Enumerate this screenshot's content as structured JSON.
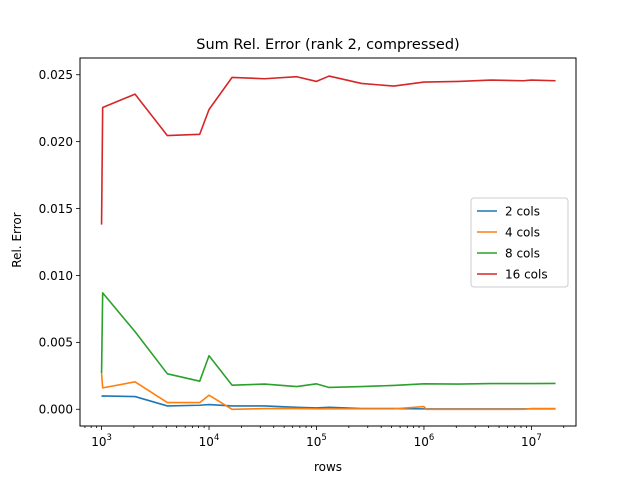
{
  "chart_data": {
    "type": "line",
    "title": "Sum Rel. Error (rank 2, compressed)",
    "xlabel": "rows",
    "ylabel": "Rel. Error",
    "xscale": "log",
    "xlim": [
      630,
      26000000
    ],
    "ylim": [
      -0.00125,
      0.02625
    ],
    "yticks": [
      0.0,
      0.005,
      0.01,
      0.015,
      0.02,
      0.025
    ],
    "ytick_labels": [
      "0.000",
      "0.005",
      "0.010",
      "0.015",
      "0.020",
      "0.025"
    ],
    "xticks": [
      1000,
      10000,
      100000,
      1000000,
      10000000
    ],
    "xtick_labels": [
      {
        "base": "10",
        "exp": "3"
      },
      {
        "base": "10",
        "exp": "4"
      },
      {
        "base": "10",
        "exp": "5"
      },
      {
        "base": "10",
        "exp": "6"
      },
      {
        "base": "10",
        "exp": "7"
      }
    ],
    "grid": false,
    "legend_position": "center-right",
    "series": [
      {
        "name": "2 cols",
        "color": "#1f77b4",
        "x": [
          1000,
          1024,
          2048,
          4096,
          8192,
          10000,
          16384,
          32768,
          65536,
          100000,
          131072,
          262144,
          524288,
          1000000,
          2097152,
          4194304,
          8388608,
          10000000,
          16777216
        ],
        "y": [
          0.00095,
          0.001,
          0.00095,
          0.00025,
          0.0003,
          0.00035,
          0.00025,
          0.00025,
          0.00015,
          0.0001,
          0.00015,
          5e-05,
          5e-05,
          3e-05,
          3e-05,
          3e-05,
          3e-05,
          3e-05,
          3e-05
        ]
      },
      {
        "name": "4 cols",
        "color": "#ff7f0e",
        "x": [
          1000,
          1024,
          2048,
          4096,
          8192,
          10000,
          16384,
          32768,
          65536,
          100000,
          131072,
          262144,
          524288,
          1000000,
          1048576,
          2097152,
          4194304,
          8388608,
          10000000,
          16777216
        ],
        "y": [
          0.0027,
          0.0016,
          0.00205,
          0.0005,
          0.0005,
          0.00105,
          0.0,
          5e-05,
          5e-05,
          3e-05,
          3e-05,
          3e-05,
          3e-05,
          0.0002,
          0.0,
          0.0,
          0.0,
          0.0,
          5e-05,
          5e-05
        ]
      },
      {
        "name": "8 cols",
        "color": "#2ca02c",
        "x": [
          1000,
          1024,
          2048,
          4096,
          8192,
          10000,
          16384,
          32768,
          65536,
          100000,
          131072,
          262144,
          524288,
          1000000,
          2097152,
          4194304,
          8388608,
          10000000,
          16777216
        ],
        "y": [
          0.0027,
          0.0087,
          0.0058,
          0.00265,
          0.0021,
          0.004,
          0.0018,
          0.00188,
          0.0017,
          0.0019,
          0.00163,
          0.0017,
          0.00178,
          0.0019,
          0.00188,
          0.00192,
          0.00192,
          0.00192,
          0.00193
        ]
      },
      {
        "name": "16 cols",
        "color": "#d62728",
        "x": [
          1000,
          1024,
          2048,
          4096,
          8192,
          10000,
          16384,
          32768,
          65536,
          100000,
          131072,
          262144,
          524288,
          1000000,
          2097152,
          4194304,
          8388608,
          10000000,
          16777216
        ],
        "y": [
          0.0138,
          0.02255,
          0.02355,
          0.02045,
          0.02055,
          0.0224,
          0.0248,
          0.0247,
          0.02485,
          0.0245,
          0.0249,
          0.02435,
          0.02415,
          0.02445,
          0.0245,
          0.0246,
          0.02455,
          0.0246,
          0.02455
        ]
      }
    ]
  }
}
